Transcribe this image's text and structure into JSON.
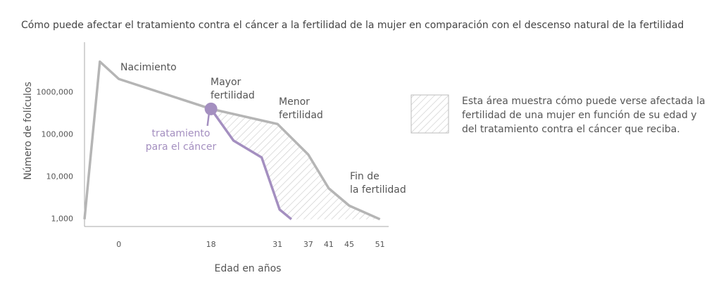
{
  "chart_data": {
    "type": "line",
    "title": "Cómo puede afectar el tratamiento contra el cáncer a la fertilidad de la mujer en comparación con el descenso natural de la fertilidad",
    "x_label": "Edad en años",
    "y_label": "Número de folículos",
    "log_y": true,
    "xlim": [
      -6.7,
      52.7
    ],
    "xticks": [
      0,
      18,
      31,
      37,
      41,
      45,
      51
    ],
    "ylim": [
      700,
      15000000
    ],
    "yticks": [
      {
        "value": 1000,
        "label": "1,000"
      },
      {
        "value": 10000,
        "label": "10,000"
      },
      {
        "value": 100000,
        "label": "100,000"
      },
      {
        "value": 1000000,
        "label": "1000,000"
      }
    ],
    "series": [
      {
        "color": "#b5b5b5",
        "x": [
          -6.7,
          -3.7,
          0,
          18,
          31,
          37,
          41,
          45,
          51
        ],
        "values": [
          1000,
          5400000,
          2100000,
          410000,
          180000,
          34000,
          5400,
          2100,
          1000
        ]
      },
      {
        "color": "#a48fc0",
        "x": [
          18,
          22.4,
          27.9,
          31.4,
          33.7
        ],
        "values": [
          410000,
          73000,
          29000,
          1700,
          1000
        ]
      }
    ],
    "annotations": [
      {
        "lines": [
          "Nacimiento"
        ]
      },
      {
        "lines": [
          "Mayor",
          "fertilidad"
        ]
      },
      {
        "lines": [
          "Menor",
          "fertilidad"
        ]
      },
      {
        "lines": [
          "Fin de",
          "la fertilidad"
        ]
      },
      {
        "lines": [
          "tratamiento",
          "para el cáncer"
        ]
      }
    ],
    "legend": {
      "lines": [
        "Esta área muestra cómo puede verse afectada la",
        "fertilidad de una mujer en función de su edad y",
        "del tratamiento contra el cáncer que reciba."
      ]
    }
  }
}
